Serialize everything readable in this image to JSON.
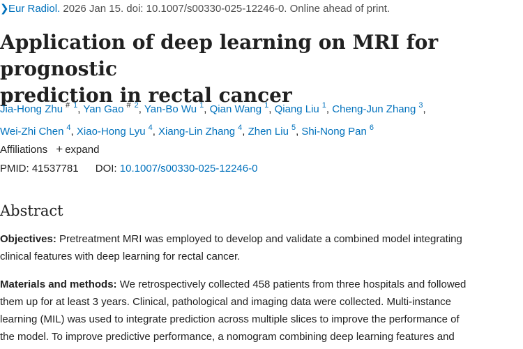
{
  "citation": {
    "journal": "Eur Radiol.",
    "rest": " 2026 Jan 15. doi: 10.1007/s00330-025-12246-0. Online ahead of print."
  },
  "title": {
    "line1": "Application of deep learning on MRI for prognostic",
    "line2": "prediction in rectal cancer"
  },
  "authors": {
    "row1": [
      {
        "name": "Jia-Hong Zhu",
        "sup": "1",
        "hash": "#"
      },
      {
        "name": "Yan Gao",
        "sup": "2",
        "hash": "#"
      },
      {
        "name": "Yan-Bo Wu",
        "sup": "1"
      },
      {
        "name": "Qian Wang",
        "sup": "1"
      },
      {
        "name": "Qiang Liu",
        "sup": "1"
      },
      {
        "name": "Cheng-Jun Zhang",
        "sup": "3"
      }
    ],
    "row2": [
      {
        "name": "Wei-Zhi Chen",
        "sup": "4"
      },
      {
        "name": "Xiao-Hong Lyu",
        "sup": "4"
      },
      {
        "name": "Xiang-Lin Zhang",
        "sup": "4"
      },
      {
        "name": "Zhen Liu",
        "sup": "5"
      },
      {
        "name": "Shi-Nong Pan",
        "sup": "6"
      }
    ]
  },
  "affiliations": {
    "label": "Affiliations",
    "expand": "expand"
  },
  "ids": {
    "pmid_label": "PMID:",
    "pmid": "41537781",
    "doi_label": "DOI:",
    "doi": "10.1007/s00330-025-12246-0"
  },
  "abstract": {
    "heading": "Abstract",
    "objectives": {
      "label": "Objectives:",
      "line1": " Pretreatment MRI was employed to develop and validate a combined model integrating",
      "line2": "clinical features with deep learning for rectal cancer."
    },
    "methods": {
      "label": "Materials and methods:",
      "line1": " We retrospectively collected 458 patients from three hospitals and followed",
      "line2": "them up for at least 3 years. Clinical, pathological and imaging data were collected. Multi-instance",
      "line3": "learning (MIL) was used to integrate prediction across multiple slices to improve the performance of",
      "line4": "the model. To improve predictive performance, a nomogram combining deep learning features and"
    }
  },
  "colors": {
    "link": "#0071bc",
    "text": "#212121"
  }
}
